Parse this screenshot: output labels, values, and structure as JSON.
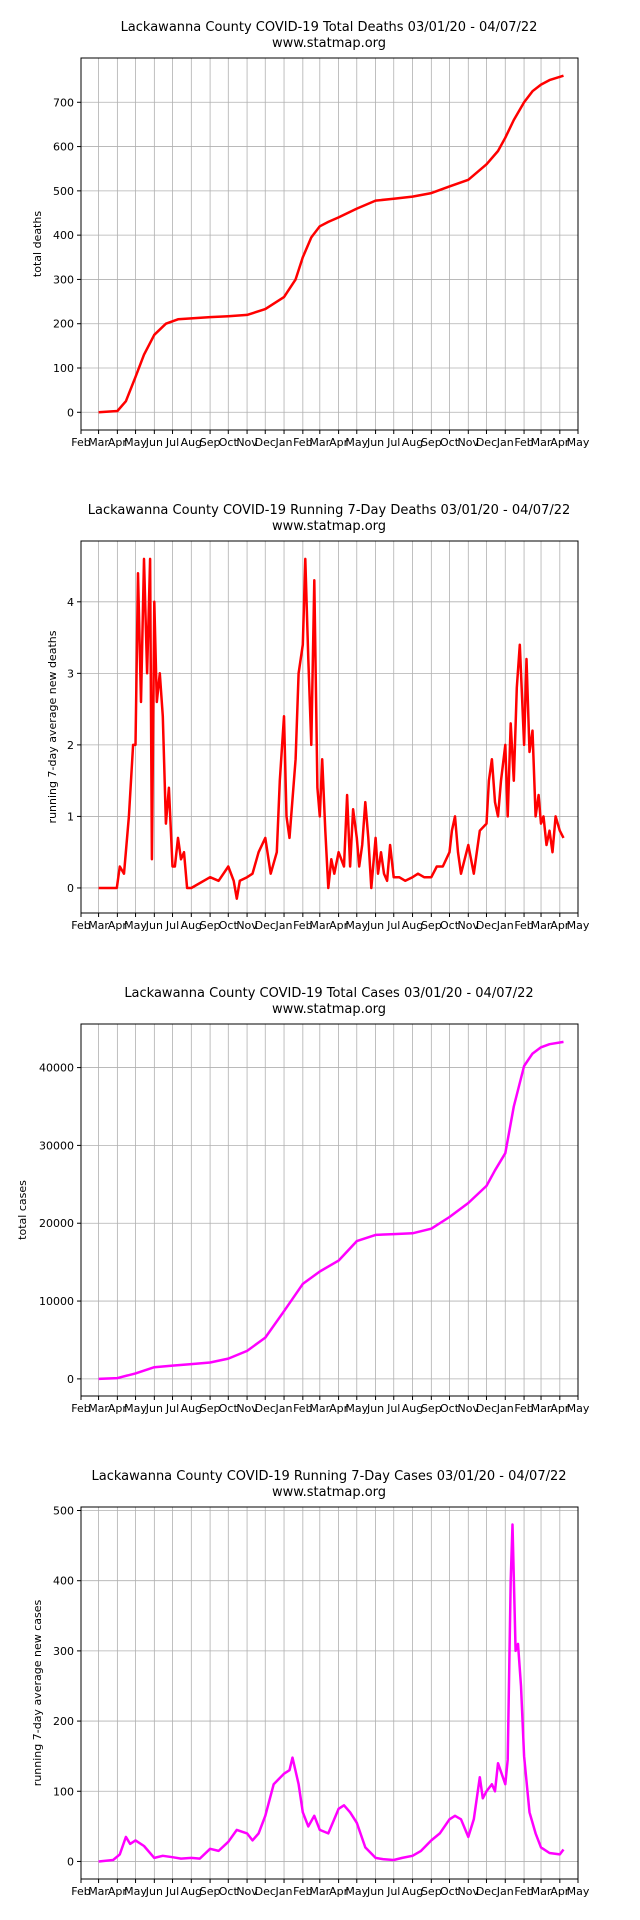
{
  "x_month_labels": [
    "Feb",
    "Mar",
    "Apr",
    "May",
    "Jun",
    "Jul",
    "Aug",
    "Sep",
    "Oct",
    "Nov",
    "Dec",
    "Jan",
    "Feb",
    "Mar",
    "Apr",
    "May",
    "Jun",
    "Jul",
    "Aug",
    "Sep",
    "Oct",
    "Nov",
    "Dec",
    "Jan",
    "Feb",
    "Mar",
    "Apr",
    "May"
  ],
  "chart_data": [
    {
      "type": "line",
      "title": "Lackawanna County COVID-19 Total Deaths 03/01/20 - 04/07/22",
      "subtitle": "www.statmap.org",
      "ylabel": "total deaths",
      "xlim": [
        "2020-02-01",
        "2022-05-01"
      ],
      "ylim": [
        -40,
        800
      ],
      "yticks": [
        0,
        100,
        200,
        300,
        400,
        500,
        600,
        700
      ],
      "grid": true,
      "color": "#ff0000",
      "series": [
        {
          "x": [
            "2020-03-01",
            "2020-04-01",
            "2020-04-15",
            "2020-05-01",
            "2020-05-15",
            "2020-06-01",
            "2020-06-20",
            "2020-07-10",
            "2020-08-01",
            "2020-09-01",
            "2020-10-01",
            "2020-11-01",
            "2020-12-01",
            "2021-01-01",
            "2021-01-20",
            "2021-02-01",
            "2021-02-15",
            "2021-03-01",
            "2021-03-15",
            "2021-04-01",
            "2021-05-01",
            "2021-06-01",
            "2021-07-01",
            "2021-08-01",
            "2021-09-01",
            "2021-10-01",
            "2021-11-01",
            "2021-12-01",
            "2021-12-20",
            "2022-01-01",
            "2022-01-15",
            "2022-02-01",
            "2022-02-15",
            "2022-03-01",
            "2022-03-15",
            "2022-04-07"
          ],
          "y": [
            0,
            3,
            25,
            80,
            130,
            175,
            200,
            210,
            212,
            215,
            217,
            220,
            233,
            260,
            300,
            350,
            395,
            420,
            430,
            440,
            460,
            478,
            482,
            487,
            495,
            510,
            525,
            560,
            590,
            620,
            660,
            700,
            725,
            740,
            750,
            760
          ]
        }
      ]
    },
    {
      "type": "line",
      "title": "Lackawanna County COVID-19 Running 7-Day Deaths 03/01/20 - 04/07/22",
      "subtitle": "www.statmap.org",
      "ylabel": "running 7-day average new deaths",
      "xlim": [
        "2020-02-01",
        "2022-05-01"
      ],
      "ylim": [
        -0.35,
        4.85
      ],
      "yticks": [
        0,
        1,
        2,
        3,
        4
      ],
      "grid": true,
      "color": "#ff0000",
      "series": [
        {
          "x": [
            "2020-03-01",
            "2020-03-31",
            "2020-04-05",
            "2020-04-12",
            "2020-04-20",
            "2020-04-27",
            "2020-05-01",
            "2020-05-05",
            "2020-05-10",
            "2020-05-15",
            "2020-05-20",
            "2020-05-25",
            "2020-05-28",
            "2020-06-01",
            "2020-06-05",
            "2020-06-10",
            "2020-06-15",
            "2020-06-20",
            "2020-06-25",
            "2020-07-01",
            "2020-07-05",
            "2020-07-10",
            "2020-07-15",
            "2020-07-20",
            "2020-07-25",
            "2020-08-01",
            "2020-09-01",
            "2020-09-15",
            "2020-10-01",
            "2020-10-10",
            "2020-10-15",
            "2020-10-20",
            "2020-11-01",
            "2020-11-10",
            "2020-11-20",
            "2020-12-01",
            "2020-12-10",
            "2020-12-20",
            "2020-12-25",
            "2021-01-01",
            "2021-01-05",
            "2021-01-10",
            "2021-01-20",
            "2021-01-25",
            "2021-02-01",
            "2021-02-05",
            "2021-02-10",
            "2021-02-15",
            "2021-02-20",
            "2021-02-25",
            "2021-03-01",
            "2021-03-05",
            "2021-03-10",
            "2021-03-15",
            "2021-03-20",
            "2021-03-25",
            "2021-04-01",
            "2021-04-10",
            "2021-04-15",
            "2021-04-20",
            "2021-04-25",
            "2021-05-01",
            "2021-05-05",
            "2021-05-10",
            "2021-05-15",
            "2021-05-20",
            "2021-05-25",
            "2021-06-01",
            "2021-06-05",
            "2021-06-10",
            "2021-06-15",
            "2021-06-20",
            "2021-06-25",
            "2021-07-01",
            "2021-07-10",
            "2021-07-20",
            "2021-08-01",
            "2021-08-10",
            "2021-08-20",
            "2021-09-01",
            "2021-09-10",
            "2021-09-20",
            "2021-10-01",
            "2021-10-05",
            "2021-10-10",
            "2021-10-15",
            "2021-10-20",
            "2021-11-01",
            "2021-11-10",
            "2021-11-20",
            "2021-12-01",
            "2021-12-05",
            "2021-12-10",
            "2021-12-15",
            "2021-12-20",
            "2021-12-25",
            "2022-01-01",
            "2022-01-05",
            "2022-01-10",
            "2022-01-15",
            "2022-01-20",
            "2022-01-25",
            "2022-02-01",
            "2022-02-05",
            "2022-02-10",
            "2022-02-15",
            "2022-02-20",
            "2022-02-25",
            "2022-03-01",
            "2022-03-05",
            "2022-03-10",
            "2022-03-15",
            "2022-03-20",
            "2022-03-25",
            "2022-04-01",
            "2022-04-07"
          ],
          "y": [
            0,
            0,
            0.3,
            0.2,
            1.0,
            2.0,
            2.0,
            4.4,
            2.6,
            4.6,
            3.0,
            4.6,
            0.4,
            4.0,
            2.6,
            3.0,
            2.4,
            0.9,
            1.4,
            0.3,
            0.3,
            0.7,
            0.4,
            0.5,
            0,
            0,
            0.15,
            0.1,
            0.3,
            0.1,
            -0.15,
            0.1,
            0.15,
            0.2,
            0.5,
            0.7,
            0.2,
            0.5,
            1.5,
            2.4,
            1.0,
            0.7,
            1.8,
            3.0,
            3.4,
            4.6,
            3.2,
            2.0,
            4.3,
            1.4,
            1.0,
            1.8,
            0.8,
            0,
            0.4,
            0.2,
            0.5,
            0.3,
            1.3,
            0.3,
            1.1,
            0.7,
            0.3,
            0.6,
            1.2,
            0.7,
            0,
            0.7,
            0.2,
            0.5,
            0.2,
            0.1,
            0.6,
            0.15,
            0.15,
            0.1,
            0.15,
            0.2,
            0.15,
            0.15,
            0.3,
            0.3,
            0.5,
            0.8,
            1.0,
            0.5,
            0.2,
            0.6,
            0.2,
            0.8,
            0.9,
            1.5,
            1.8,
            1.2,
            1.0,
            1.5,
            2.0,
            1.0,
            2.3,
            1.5,
            2.8,
            3.4,
            2.0,
            3.2,
            1.9,
            2.2,
            1.0,
            1.3,
            0.9,
            1.0,
            0.6,
            0.8,
            0.5,
            1.0,
            0.8,
            0.7
          ]
        }
      ]
    },
    {
      "type": "line",
      "title": "Lackawanna County COVID-19 Total Cases 03/01/20 - 04/07/22",
      "subtitle": "www.statmap.org",
      "ylabel": "total cases",
      "xlim": [
        "2020-02-01",
        "2022-05-01"
      ],
      "ylim": [
        -2200,
        45600
      ],
      "yticks": [
        0,
        10000,
        20000,
        30000,
        40000
      ],
      "grid": true,
      "color": "#ff00ff",
      "series": [
        {
          "x": [
            "2020-03-01",
            "2020-04-01",
            "2020-05-01",
            "2020-06-01",
            "2020-07-01",
            "2020-08-01",
            "2020-09-01",
            "2020-10-01",
            "2020-11-01",
            "2020-12-01",
            "2021-01-01",
            "2021-02-01",
            "2021-03-01",
            "2021-04-01",
            "2021-05-01",
            "2021-06-01",
            "2021-07-01",
            "2021-08-01",
            "2021-09-01",
            "2021-10-01",
            "2021-11-01",
            "2021-12-01",
            "2021-12-15",
            "2022-01-01",
            "2022-01-15",
            "2022-02-01",
            "2022-02-15",
            "2022-03-01",
            "2022-03-15",
            "2022-04-07"
          ],
          "y": [
            0,
            100,
            700,
            1500,
            1700,
            1900,
            2100,
            2600,
            3600,
            5300,
            8700,
            12200,
            13800,
            15200,
            17700,
            18500,
            18600,
            18700,
            19300,
            20800,
            22600,
            24800,
            26800,
            29000,
            35000,
            40200,
            41800,
            42600,
            43000,
            43300
          ]
        }
      ]
    },
    {
      "type": "line",
      "title": "Lackawanna County COVID-19 Running 7-Day Cases 03/01/20 - 04/07/22",
      "subtitle": "www.statmap.org",
      "ylabel": "running 7-day average new cases",
      "xlim": [
        "2020-02-01",
        "2022-05-01"
      ],
      "ylim": [
        -25,
        505
      ],
      "yticks": [
        0,
        100,
        200,
        300,
        400,
        500
      ],
      "grid": true,
      "color": "#ff00ff",
      "series": [
        {
          "x": [
            "2020-03-01",
            "2020-03-25",
            "2020-04-05",
            "2020-04-15",
            "2020-04-22",
            "2020-05-01",
            "2020-05-15",
            "2020-06-01",
            "2020-06-15",
            "2020-07-01",
            "2020-07-15",
            "2020-08-01",
            "2020-08-15",
            "2020-09-01",
            "2020-09-15",
            "2020-10-01",
            "2020-10-15",
            "2020-11-01",
            "2020-11-10",
            "2020-11-20",
            "2020-12-01",
            "2020-12-15",
            "2021-01-01",
            "2021-01-10",
            "2021-01-15",
            "2021-01-25",
            "2021-02-01",
            "2021-02-10",
            "2021-02-20",
            "2021-03-01",
            "2021-03-15",
            "2021-04-01",
            "2021-04-10",
            "2021-04-20",
            "2021-05-01",
            "2021-05-15",
            "2021-06-01",
            "2021-06-15",
            "2021-07-01",
            "2021-07-15",
            "2021-08-01",
            "2021-08-15",
            "2021-09-01",
            "2021-09-15",
            "2021-10-01",
            "2021-10-10",
            "2021-10-20",
            "2021-11-01",
            "2021-11-10",
            "2021-11-20",
            "2021-11-25",
            "2021-12-01",
            "2021-12-10",
            "2021-12-15",
            "2021-12-20",
            "2022-01-01",
            "2022-01-05",
            "2022-01-10",
            "2022-01-13",
            "2022-01-18",
            "2022-01-22",
            "2022-01-27",
            "2022-02-01",
            "2022-02-10",
            "2022-02-20",
            "2022-03-01",
            "2022-03-15",
            "2022-04-01",
            "2022-04-07"
          ],
          "y": [
            0,
            2,
            10,
            35,
            25,
            30,
            22,
            5,
            8,
            6,
            4,
            5,
            4,
            18,
            15,
            28,
            45,
            40,
            30,
            40,
            65,
            110,
            125,
            130,
            148,
            110,
            70,
            50,
            65,
            45,
            40,
            75,
            80,
            70,
            55,
            20,
            5,
            3,
            2,
            5,
            8,
            15,
            30,
            40,
            60,
            65,
            60,
            35,
            60,
            120,
            90,
            100,
            110,
            100,
            140,
            110,
            145,
            400,
            480,
            300,
            310,
            250,
            150,
            70,
            40,
            20,
            12,
            10,
            17
          ]
        }
      ]
    }
  ]
}
